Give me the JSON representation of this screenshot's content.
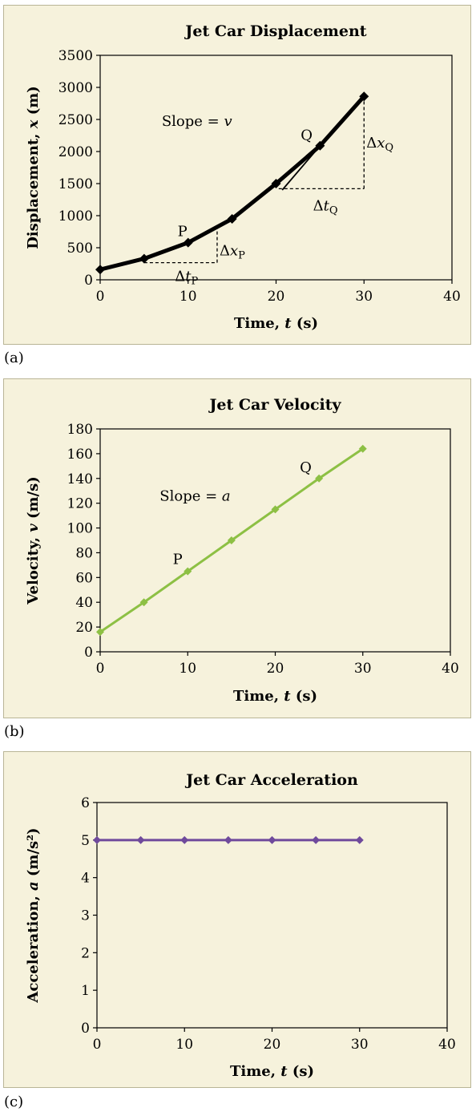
{
  "chart_data": [
    {
      "type": "line",
      "title": "Jet Car Displacement",
      "xlabel": "Time, ",
      "xlabel_var": "t",
      "xlabel_unit": " (s)",
      "ylabel": "Displacement, ",
      "ylabel_var": "x",
      "ylabel_unit": " (m)",
      "xlim": [
        0,
        40
      ],
      "ylim": [
        0,
        3500
      ],
      "xticks": [
        0,
        10,
        20,
        30,
        40
      ],
      "yticks": [
        0,
        500,
        1000,
        1500,
        2000,
        2500,
        3000,
        3500
      ],
      "grid": false,
      "line_color": "#000000",
      "series": [
        {
          "x": [
            0,
            5,
            10,
            15,
            20,
            25,
            30
          ],
          "y": [
            160,
            330,
            580,
            950,
            1500,
            2090,
            2860
          ]
        }
      ],
      "annotations": {
        "slope_text": "Slope = ",
        "slope_var": "v",
        "point_p": "P",
        "point_q": "Q",
        "delta": "Δ",
        "dx_var": "x",
        "dt_var": "t",
        "sub_p": "P",
        "sub_q": "Q"
      },
      "subfig_label": "(a)"
    },
    {
      "type": "line",
      "title": "Jet Car Velocity",
      "xlabel": "Time, ",
      "xlabel_var": "t",
      "xlabel_unit": " (s)",
      "ylabel": "Velocity, ",
      "ylabel_var": "v",
      "ylabel_unit": " (m/s)",
      "xlim": [
        0,
        40
      ],
      "ylim": [
        0,
        180
      ],
      "xticks": [
        0,
        10,
        20,
        30,
        40
      ],
      "yticks": [
        0,
        20,
        40,
        60,
        80,
        100,
        120,
        140,
        160,
        180
      ],
      "grid": false,
      "line_color": "#8dc044",
      "series": [
        {
          "x": [
            0,
            5,
            10,
            15,
            20,
            25,
            30
          ],
          "y": [
            16,
            40,
            65,
            90,
            115,
            140,
            164
          ]
        }
      ],
      "annotations": {
        "slope_text": "Slope = ",
        "slope_var": "a",
        "point_p": "P",
        "point_q": "Q"
      },
      "subfig_label": "(b)"
    },
    {
      "type": "line",
      "title": "Jet Car Acceleration",
      "xlabel": "Time, ",
      "xlabel_var": "t",
      "xlabel_unit": " (s)",
      "ylabel": "Acceleration, ",
      "ylabel_var": "a",
      "ylabel_unit": " (m/s²)",
      "xlim": [
        0,
        40
      ],
      "ylim": [
        0,
        6
      ],
      "xticks": [
        0,
        10,
        20,
        30,
        40
      ],
      "yticks": [
        0,
        1,
        2,
        3,
        4,
        5,
        6
      ],
      "grid": false,
      "line_color": "#6f4a9c",
      "series": [
        {
          "x": [
            0,
            5,
            10,
            15,
            20,
            25,
            30
          ],
          "y": [
            5,
            5,
            5,
            5,
            5,
            5,
            5
          ]
        }
      ],
      "subfig_label": "(c)"
    }
  ]
}
